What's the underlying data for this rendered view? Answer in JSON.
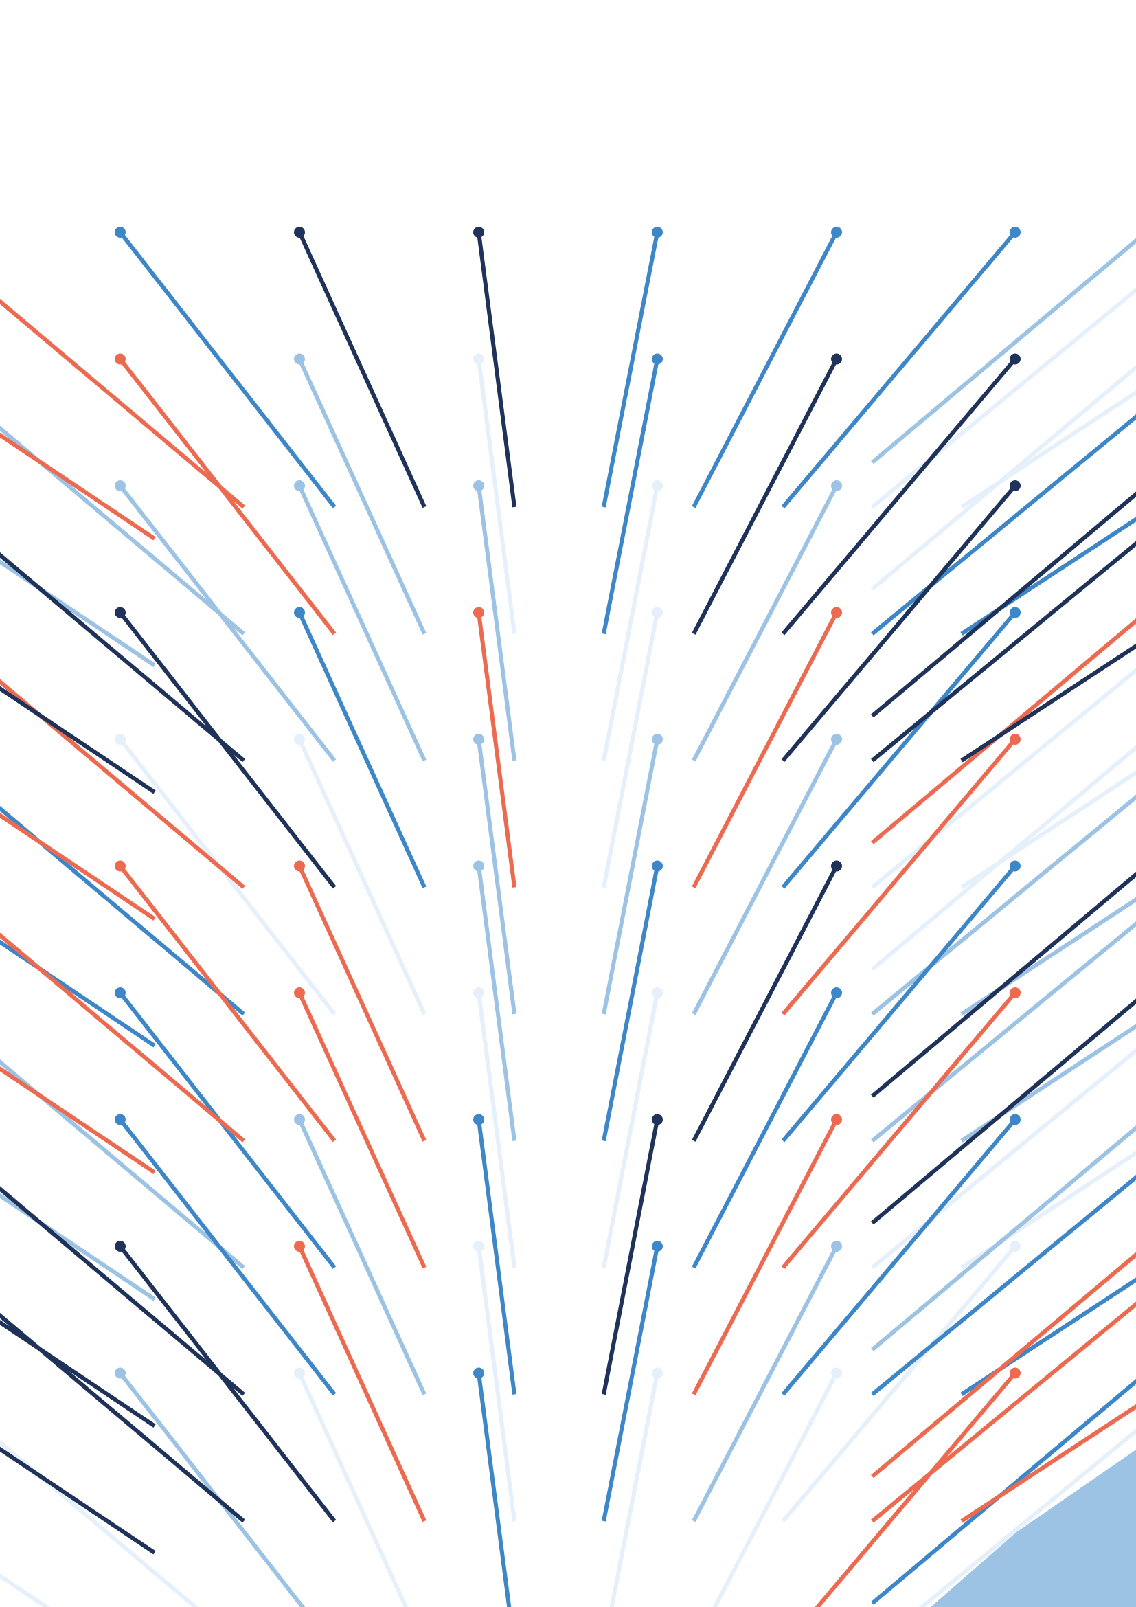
{
  "palette": {
    "dark_navy": "#1f3259",
    "blue": "#3d87c8",
    "light_blue": "#9dc3e4",
    "pale_blue": "#e6f0fa",
    "orange": "#ec6a50",
    "background": "#ffffff"
  },
  "artwork": {
    "description_hidden": "",
    "columns": 7,
    "rows": 10,
    "grid_colors": [
      [
        "blue",
        "dark_navy",
        "dark_navy",
        "blue",
        "blue",
        "blue",
        "light_blue"
      ],
      [
        "orange",
        "light_blue",
        "pale_blue",
        "blue",
        "dark_navy",
        "dark_navy",
        "pale_blue"
      ],
      [
        "light_blue",
        "light_blue",
        "light_blue",
        "pale_blue",
        "light_blue",
        "dark_navy",
        "dark_navy"
      ],
      [
        "dark_navy",
        "blue",
        "orange",
        "pale_blue",
        "orange",
        "blue",
        "orange"
      ],
      [
        "pale_blue",
        "pale_blue",
        "light_blue",
        "light_blue",
        "light_blue",
        "orange",
        "pale_blue"
      ],
      [
        "orange",
        "orange",
        "light_blue",
        "blue",
        "dark_navy",
        "blue",
        "dark_navy"
      ],
      [
        "blue",
        "orange",
        "pale_blue",
        "pale_blue",
        "blue",
        "orange",
        "dark_navy"
      ],
      [
        "blue",
        "light_blue",
        "blue",
        "dark_navy",
        "orange",
        "blue",
        "light_blue"
      ],
      [
        "dark_navy",
        "orange",
        "pale_blue",
        "blue",
        "light_blue",
        "pale_blue",
        "orange"
      ],
      [
        "light_blue",
        "pale_blue",
        "blue",
        "pale_blue",
        "pale_blue",
        "orange",
        "blue"
      ]
    ],
    "left_edge_colors": [
      "orange",
      "light_blue",
      "dark_navy",
      "orange",
      "blue",
      "orange",
      "light_blue",
      "dark_navy",
      "dark_navy",
      "pale_blue"
    ],
    "right_edge_colors": [
      "pale_blue",
      "blue",
      "dark_navy",
      "pale_blue",
      "light_blue",
      "light_blue",
      "pale_blue",
      "blue",
      "orange",
      "pale_blue"
    ]
  }
}
